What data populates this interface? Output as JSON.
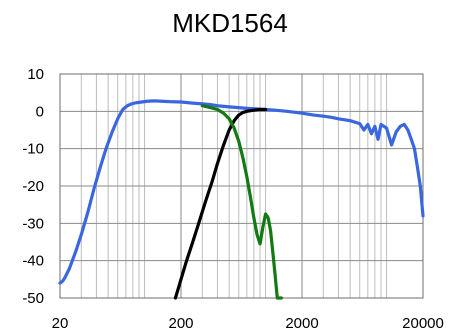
{
  "chart_data": {
    "type": "line",
    "title": "MKD1564",
    "xlabel": "",
    "ylabel": "",
    "xscale": "log",
    "xlim": [
      20,
      20000
    ],
    "ylim": [
      -50,
      10
    ],
    "x_ticks": [
      20,
      200,
      2000,
      20000
    ],
    "x_tick_labels": [
      "20",
      "200",
      "2000",
      "20000"
    ],
    "y_ticks": [
      10,
      0,
      -10,
      -20,
      -30,
      -40,
      -50
    ],
    "y_tick_labels": [
      "10",
      "0",
      "-10",
      "-20",
      "-30",
      "-40",
      "-50"
    ],
    "grid": true,
    "legend": "none",
    "series": [
      {
        "color": "#3a66e0",
        "x": [
          20,
          21,
          22,
          24,
          27,
          30,
          34,
          38,
          43,
          48,
          54,
          60,
          66,
          72,
          78,
          85,
          95,
          105,
          120,
          140,
          160,
          200,
          250,
          300,
          350,
          400,
          500,
          600,
          700,
          800,
          1000,
          1200,
          1500,
          2000,
          2500,
          3000,
          3500,
          4000,
          5000,
          6000,
          6500,
          7000,
          7500,
          8000,
          8500,
          9000,
          10000,
          11000,
          12000,
          13000,
          14000,
          15000,
          16000,
          17000,
          18000,
          19000,
          20000
        ],
        "y": [
          -46,
          -45.5,
          -44.5,
          -42,
          -37.5,
          -33,
          -27,
          -21,
          -15,
          -10,
          -5.5,
          -2,
          0.5,
          1.5,
          2,
          2.3,
          2.5,
          2.7,
          2.8,
          2.7,
          2.6,
          2.5,
          2.2,
          2,
          1.8,
          1.5,
          1.2,
          1,
          0.8,
          0.7,
          0.5,
          0.3,
          0,
          -0.5,
          -1,
          -1.3,
          -1.6,
          -2,
          -2.5,
          -3.3,
          -5,
          -3.5,
          -6,
          -4,
          -7.5,
          -3.5,
          -4.5,
          -9,
          -5.5,
          -4,
          -3.5,
          -5,
          -7.5,
          -10,
          -15,
          -20,
          -28
        ]
      },
      {
        "color": "#000000",
        "x": [
          180,
          200,
          220,
          250,
          280,
          320,
          360,
          400,
          450,
          500,
          550,
          600,
          650,
          700,
          800,
          900,
          1000
        ],
        "y": [
          -50,
          -45,
          -40.5,
          -35,
          -30,
          -24,
          -19,
          -14,
          -9,
          -5,
          -2.5,
          -1,
          -0.3,
          0,
          0.3,
          0.5,
          0.5
        ]
      },
      {
        "color": "#137a13",
        "x": [
          300,
          350,
          400,
          450,
          500,
          550,
          600,
          650,
          700,
          750,
          800,
          850,
          900,
          950,
          1000,
          1050,
          1100,
          1150,
          1200,
          1250,
          1300,
          1350
        ],
        "y": [
          1.5,
          1,
          0.5,
          -0.5,
          -2,
          -4.5,
          -8,
          -12.5,
          -17.5,
          -23,
          -28.5,
          -33,
          -35.5,
          -31,
          -27.5,
          -28.5,
          -32,
          -38,
          -44,
          -50,
          -50,
          -50
        ]
      }
    ]
  }
}
